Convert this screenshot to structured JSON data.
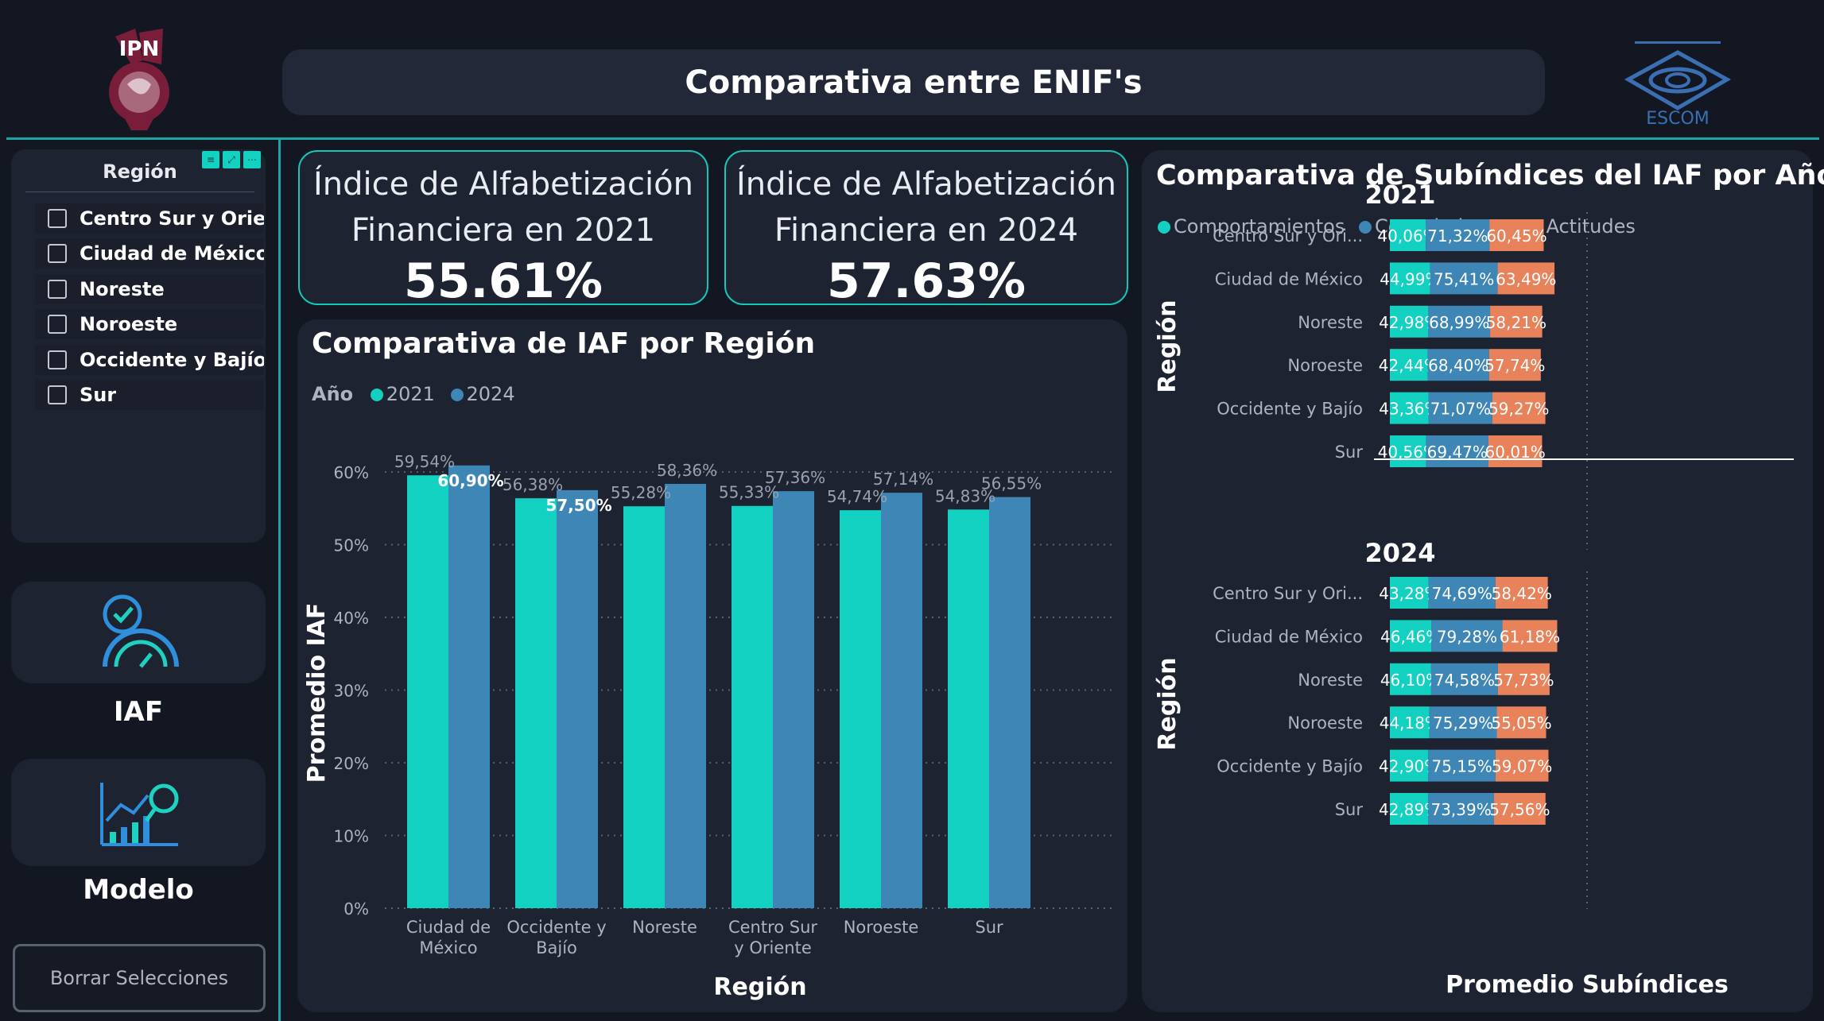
{
  "header": {
    "title": "Comparativa entre ENIF's",
    "escom_logo_text": "ESCOM",
    "ipn_logo_text": "IPN"
  },
  "slicer": {
    "title": "Región",
    "items": [
      "Centro Sur y Orien...",
      "Ciudad de México",
      "Noreste",
      "Noroeste",
      "Occidente y Bajío",
      "Sur"
    ]
  },
  "nav": {
    "iaf_label": "IAF",
    "modelo_label": "Modelo",
    "clear_label": "Borrar Selecciones"
  },
  "kpis": [
    {
      "line1": "Índice de Alfabetización",
      "line2": "Financiera en 2021",
      "value": "55.61%"
    },
    {
      "line1": "Índice de Alfabetización",
      "line2": "Financiera en 2024",
      "value": "57.63%"
    }
  ],
  "colors": {
    "teal": "#12d1c0",
    "blue": "#3d86b5",
    "orange": "#e8825a",
    "accent": "#1aa5a0"
  },
  "chart_data": [
    {
      "type": "bar",
      "title": "Comparativa de IAF por Región",
      "legend_title": "Año",
      "xlabel": "Región",
      "ylabel": "Promedio IAF",
      "ylim": [
        0,
        60
      ],
      "yticks": [
        "0%",
        "10%",
        "20%",
        "30%",
        "40%",
        "50%",
        "60%"
      ],
      "categories": [
        "Ciudad de México",
        "Occidente y Bajío",
        "Noreste",
        "Centro Sur y Oriente",
        "Noroeste",
        "Sur"
      ],
      "series": [
        {
          "name": "2021",
          "values": [
            59.54,
            56.38,
            55.28,
            55.33,
            54.74,
            54.83
          ],
          "labels": [
            "59,54%",
            "56,38%",
            "55,28%",
            "55,33%",
            "54,74%",
            "54,83%"
          ]
        },
        {
          "name": "2024",
          "values": [
            60.9,
            57.5,
            58.36,
            57.36,
            57.14,
            56.55
          ],
          "labels": [
            "60,90%",
            "57,50%",
            "58,36%",
            "57,36%",
            "57,14%",
            "56,55%"
          ]
        }
      ],
      "legend_placement": "top-left",
      "grid": true
    },
    {
      "type": "bar",
      "orientation": "horizontal-stacked",
      "title": "Comparativa de Subíndices del IAF por Año",
      "xlabel": "Promedio Subíndices",
      "ylabel": "Región",
      "series_names": [
        "Comportamientos",
        "Conocimientos",
        "Actitudes"
      ],
      "legend_placement": "top-left",
      "panels": [
        {
          "year": "2021",
          "categories": [
            "Centro Sur y Ori...",
            "Ciudad de México",
            "Noreste",
            "Noroeste",
            "Occidente y Bajío",
            "Sur"
          ],
          "Comportamientos": [
            40.06,
            44.99,
            42.98,
            42.44,
            43.36,
            40.56
          ],
          "Conocimientos": [
            71.32,
            75.41,
            68.99,
            68.4,
            71.07,
            69.47
          ],
          "Actitudes": [
            60.45,
            63.49,
            58.21,
            57.74,
            59.27,
            60.01
          ],
          "labels": [
            [
              "40,06%",
              "71,32%",
              "60,45%"
            ],
            [
              "44,99%",
              "75,41%",
              "63,49%"
            ],
            [
              "42,98%",
              "68,99%",
              "58,21%"
            ],
            [
              "42,44%",
              "68,40%",
              "57,74%"
            ],
            [
              "43,36%",
              "71,07%",
              "59,27%"
            ],
            [
              "40,56%",
              "69,47%",
              "60,01%"
            ]
          ]
        },
        {
          "year": "2024",
          "categories": [
            "Centro Sur y Ori...",
            "Ciudad de México",
            "Noreste",
            "Noroeste",
            "Occidente y Bajío",
            "Sur"
          ],
          "Comportamientos": [
            43.28,
            46.46,
            46.1,
            44.18,
            42.9,
            42.89
          ],
          "Conocimientos": [
            74.69,
            79.28,
            74.58,
            75.29,
            75.15,
            73.39
          ],
          "Actitudes": [
            58.42,
            61.18,
            57.73,
            55.05,
            59.07,
            57.56
          ],
          "labels": [
            [
              "43,28%",
              "74,69%",
              "58,42%"
            ],
            [
              "46,46%",
              "79,28%",
              "61,18%"
            ],
            [
              "46,10%",
              "74,58%",
              "57,73%"
            ],
            [
              "44,18%",
              "75,29%",
              "55,05%"
            ],
            [
              "42,90%",
              "75,15%",
              "59,07%"
            ],
            [
              "42,89%",
              "73,39%",
              "57,56%"
            ]
          ]
        }
      ]
    }
  ]
}
